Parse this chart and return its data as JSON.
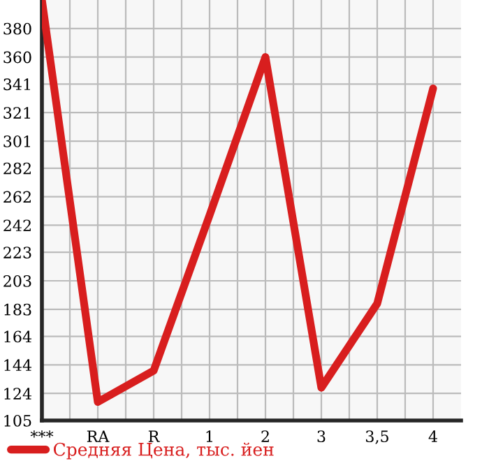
{
  "chart_data": {
    "type": "line",
    "categories": [
      "***",
      "RA",
      "R",
      "1",
      "2",
      "3",
      "3,5",
      "4"
    ],
    "series": [
      {
        "name": "Средняя Цена, тыс. йен",
        "color": "#d81e1e",
        "values": [
          400,
          118,
          140,
          249,
          360,
          128,
          187,
          338
        ]
      }
    ],
    "ylim": [
      105,
      400
    ],
    "yticks": [
      105,
      124,
      144,
      164,
      183,
      203,
      223,
      242,
      262,
      282,
      301,
      321,
      341,
      360,
      380
    ],
    "grid": true,
    "legend": "bottom",
    "marker": "none",
    "line_style": "solid"
  }
}
